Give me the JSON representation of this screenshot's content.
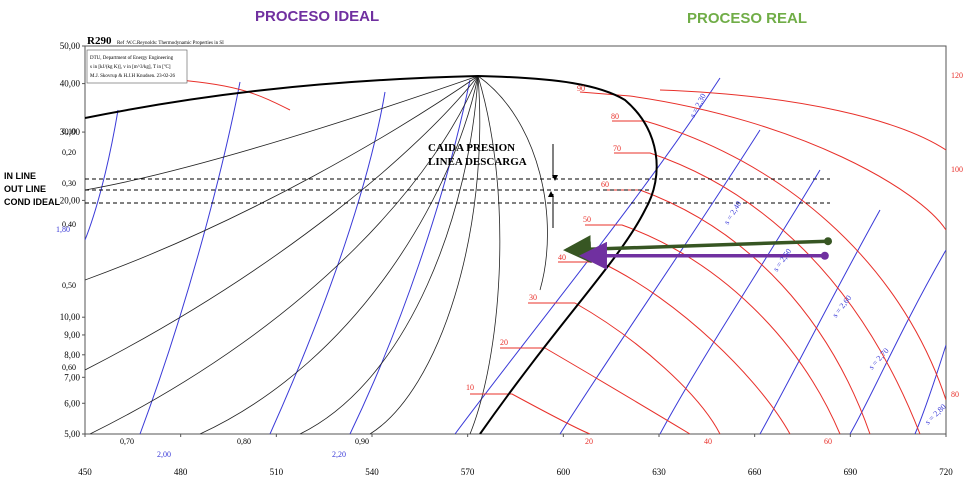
{
  "headers": {
    "ideal": "PROCESO IDEAL",
    "real": "PROCESO REAL"
  },
  "chart_data": {
    "type": "line",
    "title": "R290",
    "subtitle": "Ref :W.C.Reynolds: Thermodynamic Properties in SI",
    "info_box": [
      "DTU, Department of Energy Engineering",
      "s in [kJ/(kg K)],  v in [m^3/kg],  T in [ºC]",
      "M.J. Skovrup & H.J.H Knudsen. 23-02-26"
    ],
    "xlabel": "",
    "ylabel": "",
    "x_ticks": [
      "450",
      "480",
      "510",
      "540",
      "570",
      "600",
      "630",
      "660",
      "690",
      "720"
    ],
    "xlim": [
      450,
      720
    ],
    "y_scale": "log",
    "y_ticks_left": [
      "50,00",
      "40,00",
      "30,00",
      "20,00",
      "10,00",
      "9,00",
      "8,00",
      "7,00",
      "6,00",
      "5,00"
    ],
    "ylim": [
      5,
      50
    ],
    "y_ticks_right": [
      "120",
      "100",
      "80"
    ],
    "quality_labels_left": [
      "0,10",
      "0,20",
      "0,30",
      "0,40",
      "0,50",
      "0,60"
    ],
    "quality_labels_bottom": [
      "0,70",
      "0,80",
      "0,90"
    ],
    "entropy_labels_left": [
      "1,80"
    ],
    "entropy_labels_bottom": [
      "2,00",
      "2,20"
    ],
    "entropy_labels_diagonal": [
      "s = 2,30",
      "s = 2,40",
      "s = 2,50",
      "s = 2,60",
      "s = 2,70",
      "s = 2,80"
    ],
    "isotherm_labels": [
      "10",
      "20",
      "30",
      "40",
      "50",
      "60",
      "70",
      "80",
      "90"
    ],
    "isotherm_labels_bottom": [
      "20",
      "40",
      "60"
    ],
    "annotation": {
      "line1": "CAIDA PRESION",
      "line2": "LINEA DESCARGA"
    },
    "line_labels": [
      "IN LINE",
      "OUT LINE",
      "COND IDEAL"
    ],
    "series": [
      {
        "color": "#375623",
        "points": [
          [
            683,
            15.7
          ],
          [
            601,
            14.9
          ]
        ]
      },
      {
        "color": "#7030a0",
        "points": [
          [
            682,
            14.4
          ],
          [
            606,
            14.4
          ]
        ]
      }
    ],
    "colors": {
      "isotherm": "#e8302a",
      "entropy": "#3a3ad8",
      "quality": "#222222",
      "saturation": "#000000",
      "frame": "#555555"
    }
  }
}
